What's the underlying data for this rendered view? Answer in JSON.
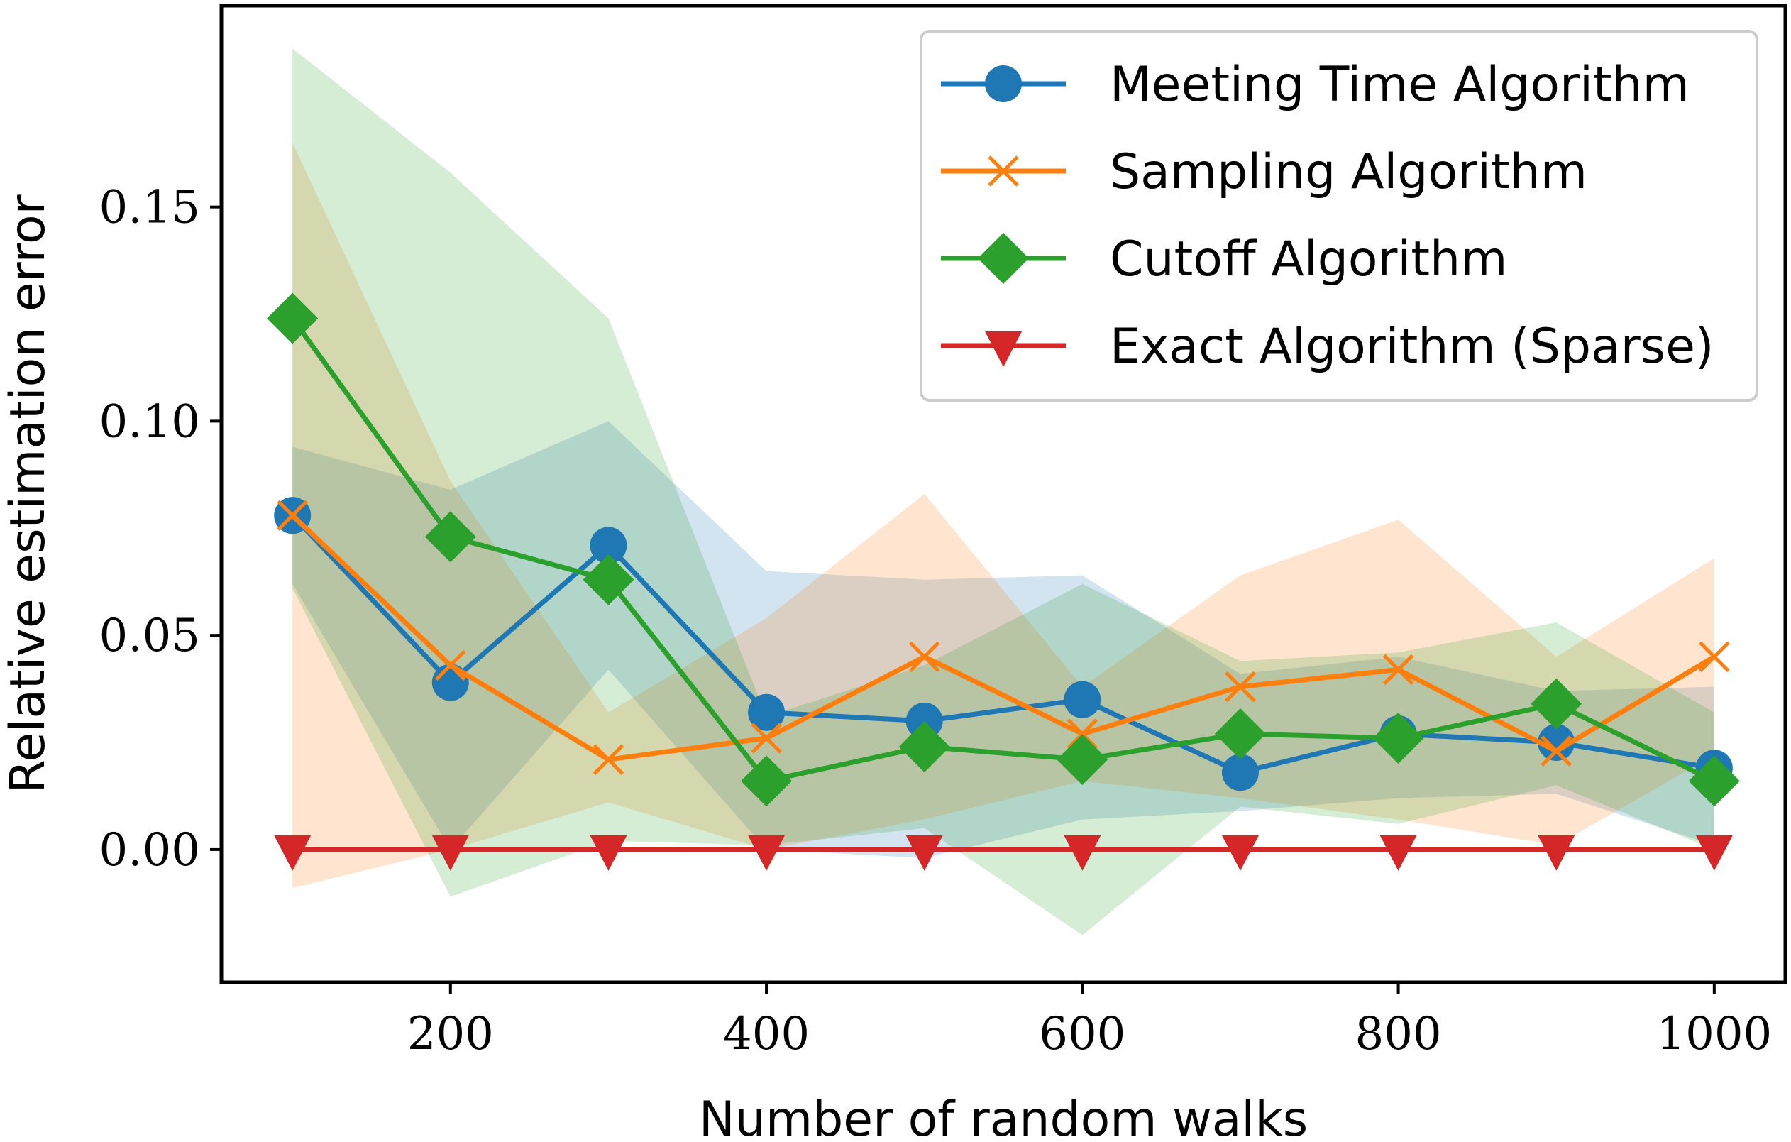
{
  "chart_data": {
    "type": "line",
    "title": "",
    "xlabel": "Number of random walks",
    "ylabel": "Relative estimation error",
    "x": [
      100,
      200,
      300,
      400,
      500,
      600,
      700,
      800,
      900,
      1000
    ],
    "xlim": [
      55,
      1045
    ],
    "ylim": [
      -0.031,
      0.197
    ],
    "xticks": [
      200,
      400,
      600,
      800,
      1000
    ],
    "xtick_labels": [
      "200",
      "400",
      "600",
      "800",
      "1000"
    ],
    "yticks": [
      0.0,
      0.05,
      0.1,
      0.15
    ],
    "ytick_labels": [
      "0.00",
      "0.05",
      "0.10",
      "0.15"
    ],
    "grid": false,
    "legend_position": "top-right",
    "series": [
      {
        "name": "Meeting Time Algorithm",
        "color": "#1f77b4",
        "marker": "circle",
        "values": [
          0.078,
          0.039,
          0.071,
          0.032,
          0.03,
          0.035,
          0.018,
          0.027,
          0.025,
          0.019
        ],
        "band_upper": [
          0.094,
          0.084,
          0.1,
          0.065,
          0.063,
          0.064,
          0.041,
          0.045,
          0.037,
          0.038
        ],
        "band_lower": [
          0.062,
          0.0,
          0.042,
          0.0,
          -0.002,
          0.007,
          0.009,
          0.012,
          0.013,
          0.001
        ]
      },
      {
        "name": "Sampling Algorithm",
        "color": "#ff7f0e",
        "marker": "x",
        "values": [
          0.078,
          0.043,
          0.021,
          0.026,
          0.045,
          0.027,
          0.038,
          0.042,
          0.023,
          0.045
        ],
        "band_upper": [
          0.165,
          0.086,
          0.032,
          0.054,
          0.083,
          0.038,
          0.064,
          0.077,
          0.045,
          0.068
        ],
        "band_lower": [
          -0.009,
          0.0,
          0.011,
          0.0,
          0.007,
          0.016,
          0.012,
          0.007,
          0.001,
          0.022
        ]
      },
      {
        "name": "Cutoff Algorithm",
        "color": "#2ca02c",
        "marker": "diamond",
        "values": [
          0.124,
          0.073,
          0.063,
          0.016,
          0.024,
          0.021,
          0.027,
          0.026,
          0.034,
          0.016
        ],
        "band_upper": [
          0.187,
          0.158,
          0.124,
          0.031,
          0.043,
          0.062,
          0.044,
          0.046,
          0.053,
          0.032
        ],
        "band_lower": [
          0.061,
          -0.011,
          0.002,
          0.001,
          0.005,
          -0.02,
          0.01,
          0.006,
          0.015,
          0.0
        ]
      },
      {
        "name": "Exact Algorithm (Sparse)",
        "color": "#d62728",
        "marker": "triangle-down",
        "values": [
          0,
          0,
          0,
          0,
          0,
          0,
          0,
          0,
          0,
          0
        ]
      }
    ]
  }
}
